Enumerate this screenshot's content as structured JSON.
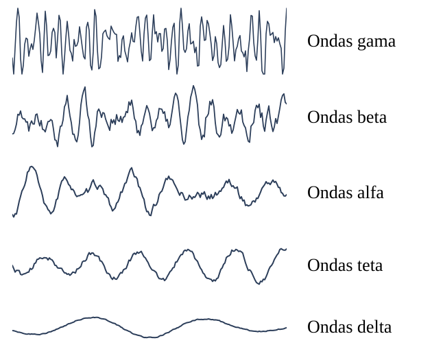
{
  "figure": {
    "background_color": "#ffffff",
    "stroke_color": "#2c3e5a",
    "label_color": "#000000",
    "label_fontsize": 26,
    "wave_width": 400,
    "waves": [
      {
        "id": "gamma",
        "label": "Ondas gama",
        "height": 100,
        "amplitude": 40,
        "base_freq": 0.45,
        "noise": 0.9,
        "stroke_width": 1.6,
        "seed": 11
      },
      {
        "id": "beta",
        "label": "Ondas beta",
        "height": 100,
        "amplitude": 38,
        "base_freq": 0.2,
        "noise": 0.55,
        "stroke_width": 1.8,
        "seed": 22
      },
      {
        "id": "alfa",
        "label": "Ondas alfa",
        "height": 100,
        "amplitude": 38,
        "base_freq": 0.11,
        "noise": 0.22,
        "stroke_width": 2.0,
        "seed": 33
      },
      {
        "id": "teta",
        "label": "Ondas teta",
        "height": 90,
        "amplitude": 30,
        "base_freq": 0.06,
        "noise": 0.18,
        "stroke_width": 2.0,
        "seed": 44
      },
      {
        "id": "delta",
        "label": "Ondas delta",
        "height": 70,
        "amplitude": 18,
        "base_freq": 0.03,
        "noise": 0.06,
        "stroke_width": 2.0,
        "seed": 55
      }
    ]
  }
}
